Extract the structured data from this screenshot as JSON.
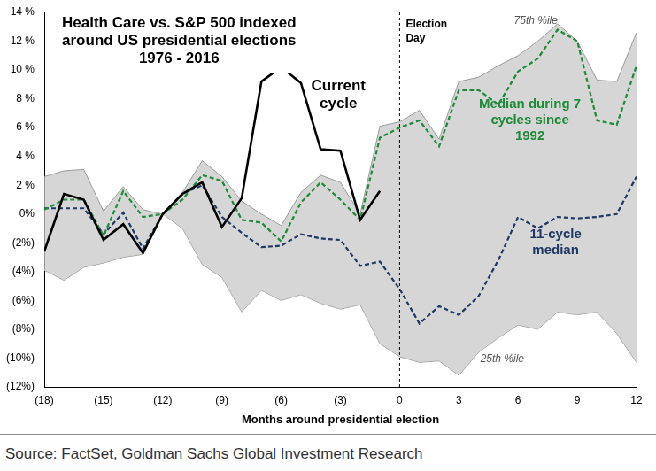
{
  "chart_data": {
    "type": "line",
    "title": "Health Care vs. S&P 500 indexed around US presidential elections 1976 - 2016",
    "x_label": "Months around presidential election",
    "source": "Source: FactSet, Goldman Sachs Global Investment Research",
    "x": [
      -18,
      -17,
      -16,
      -15,
      -14,
      -13,
      -12,
      -11,
      -10,
      -9,
      -8,
      -7,
      -6,
      -5,
      -4,
      -3,
      -2,
      -1,
      0,
      1,
      2,
      3,
      4,
      5,
      6,
      7,
      8,
      9,
      10,
      11,
      12
    ],
    "series": [
      {
        "name": "Current cycle",
        "color": "#000000",
        "line_style": "solid",
        "values": [
          -2.6,
          1.4,
          1.0,
          -1.8,
          -0.7,
          -2.7,
          0,
          1.4,
          2.2,
          -0.9,
          1.1,
          9.2,
          10.2,
          9.1,
          4.5,
          4.4,
          -0.4,
          1.6,
          null,
          null,
          null,
          null,
          null,
          null,
          null,
          null,
          null,
          null,
          null,
          null,
          null
        ]
      },
      {
        "name": "Median during 7 cycles since 1992",
        "color": "#1f8a3a",
        "line_style": "dashed",
        "values": [
          0.3,
          1.0,
          1.0,
          -1.5,
          1.6,
          -0.2,
          0,
          1.0,
          2.7,
          2.3,
          -0.4,
          -0.6,
          -1.9,
          0.8,
          2.2,
          1.0,
          -0.4,
          5.3,
          6.0,
          6.5,
          4.7,
          8.6,
          8.6,
          7.6,
          9.9,
          10.8,
          12.8,
          12.0,
          6.5,
          6.2,
          10.3
        ]
      },
      {
        "name": "11-cycle median",
        "color": "#1f3864",
        "line_style": "dashed",
        "values": [
          0.4,
          0.4,
          0.4,
          -1.4,
          0.1,
          -2.4,
          0,
          1.4,
          2.0,
          -0.2,
          -1.3,
          -2.3,
          -2.2,
          -1.4,
          -1.7,
          -1.8,
          -3.6,
          -3.3,
          -5.2,
          -7.6,
          -6.4,
          -7.0,
          -5.7,
          -3.2,
          -0.2,
          -1.0,
          -0.2,
          -0.3,
          -0.2,
          0.0,
          2.6
        ]
      },
      {
        "name": "75th %ile",
        "color": "#9a9a9a",
        "type": "area",
        "line_style": "solid",
        "values": [
          2.6,
          3.0,
          3.1,
          0.2,
          1.9,
          0.3,
          0,
          1.5,
          3.7,
          2.6,
          0.9,
          0.0,
          -0.8,
          1.5,
          2.7,
          2.2,
          0.0,
          6.1,
          6.4,
          7.2,
          5.2,
          9.2,
          9.5,
          10.3,
          11.0,
          12.0,
          13.2,
          12.0,
          9.3,
          9.2,
          12.6
        ]
      },
      {
        "name": "25th %ile",
        "color": "#9a9a9a",
        "type": "area",
        "line_style": "solid",
        "values": [
          -3.9,
          -4.6,
          -3.7,
          -3.4,
          -3.0,
          -2.8,
          0,
          -1.0,
          -3.5,
          -4.4,
          -6.8,
          -5.3,
          -6.0,
          -5.6,
          -6.2,
          -6.6,
          -6.3,
          -9.0,
          -9.9,
          -10.3,
          -10.2,
          -11.2,
          -9.6,
          -8.6,
          -7.7,
          -8.0,
          -6.8,
          -7.0,
          -6.8,
          -8.3,
          -10.3
        ]
      }
    ],
    "annotations": [
      {
        "text": "Election Day",
        "x": 0
      }
    ],
    "xlim": [
      -18,
      12
    ],
    "xticks": [
      {
        "value": -18,
        "label": "(18)"
      },
      {
        "value": -15,
        "label": "(15)"
      },
      {
        "value": -12,
        "label": "(12)"
      },
      {
        "value": -9,
        "label": "(9)"
      },
      {
        "value": -6,
        "label": "(6)"
      },
      {
        "value": -3,
        "label": "(3)"
      },
      0,
      3,
      6,
      9,
      12
    ],
    "ylim": [
      -12,
      14
    ],
    "yticks": [
      {
        "value": -12,
        "label": "(12%)"
      },
      {
        "value": -10,
        "label": "(10%)"
      },
      {
        "value": -8,
        "label": "(8%)"
      },
      {
        "value": -6,
        "label": "(6%)"
      },
      {
        "value": -4,
        "label": "(4%)"
      },
      {
        "value": -2,
        "label": "(2%)"
      },
      {
        "value": 0,
        "label": "0%"
      },
      {
        "value": 2,
        "label": "2 %"
      },
      {
        "value": 4,
        "label": "4 %"
      },
      {
        "value": 6,
        "label": "6 %"
      },
      {
        "value": 8,
        "label": "8 %"
      },
      {
        "value": 10,
        "label": "10 %"
      },
      {
        "value": 12,
        "label": "12 %"
      },
      {
        "value": 14,
        "label": "14 %"
      }
    ],
    "grid": false,
    "legend": "none"
  }
}
